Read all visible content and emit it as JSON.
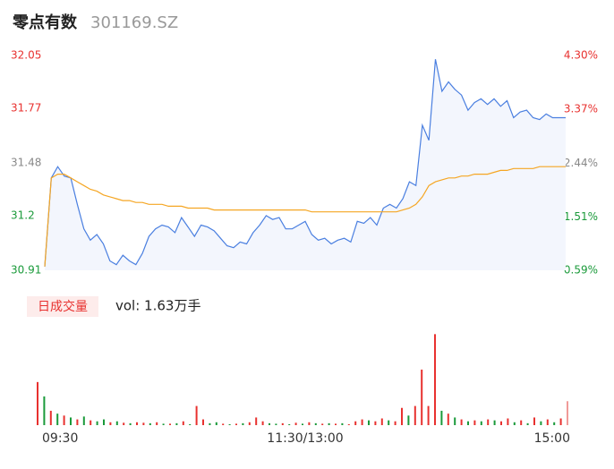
{
  "header": {
    "name": "零点有数",
    "code": "301169.SZ"
  },
  "chart_data": [
    {
      "type": "line",
      "area": true,
      "x": [
        0,
        3,
        6,
        9,
        12,
        15,
        18,
        21,
        24,
        27,
        30,
        33,
        36,
        39,
        42,
        45,
        48,
        51,
        54,
        57,
        60,
        63,
        66,
        69,
        72,
        75,
        78,
        81,
        84,
        87,
        90,
        93,
        96,
        99,
        102,
        105,
        108,
        111,
        114,
        117,
        120,
        123,
        126,
        129,
        132,
        135,
        138,
        141,
        144,
        147,
        150,
        153,
        156,
        159,
        162,
        165,
        168,
        171,
        174,
        177,
        180,
        183,
        186,
        189,
        192,
        195,
        198,
        201,
        204,
        207,
        210,
        213,
        216,
        219,
        222,
        225,
        228,
        231,
        234,
        237,
        240
      ],
      "xlim": [
        0,
        240
      ],
      "xticks": [
        {
          "value": 0,
          "label": "09:30"
        },
        {
          "value": 120,
          "label": "11:30/13:00"
        },
        {
          "value": 240,
          "label": "15:00"
        }
      ],
      "ylim": [
        30.91,
        32.05
      ],
      "yticks": [
        32.05,
        31.77,
        31.48,
        31.2,
        30.91
      ],
      "ytick_colors": [
        "#e8312f",
        "#e8312f",
        "#888888",
        "#1a9a3a",
        "#1a9a3a"
      ],
      "y2lim": [
        0.59,
        4.3
      ],
      "y2ticks": [
        {
          "value": 4.3,
          "label": "4.30%"
        },
        {
          "value": 3.37,
          "label": "3.37%"
        },
        {
          "value": 2.44,
          "label": "2.44%"
        },
        {
          "value": 1.51,
          "label": "1.51%"
        },
        {
          "value": 0.59,
          "label": "0.59%"
        }
      ],
      "y2tick_colors": [
        "#e8312f",
        "#e8312f",
        "#888888",
        "#1a9a3a",
        "#1a9a3a"
      ],
      "series": [
        {
          "color": "#4a7fe0",
          "values": [
            30.93,
            31.4,
            31.46,
            31.41,
            31.4,
            31.26,
            31.13,
            31.07,
            31.1,
            31.05,
            30.96,
            30.94,
            30.99,
            30.96,
            30.94,
            31.0,
            31.09,
            31.13,
            31.15,
            31.14,
            31.11,
            31.19,
            31.14,
            31.09,
            31.15,
            31.14,
            31.12,
            31.08,
            31.04,
            31.03,
            31.06,
            31.05,
            31.11,
            31.15,
            31.2,
            31.18,
            31.19,
            31.13,
            31.13,
            31.15,
            31.17,
            31.1,
            31.07,
            31.08,
            31.05,
            31.07,
            31.08,
            31.06,
            31.17,
            31.16,
            31.19,
            31.15,
            31.24,
            31.26,
            31.24,
            31.29,
            31.38,
            31.36,
            31.68,
            31.6,
            32.03,
            31.86,
            31.91,
            31.87,
            31.84,
            31.76,
            31.8,
            31.82,
            31.79,
            31.82,
            31.78,
            31.81,
            31.72,
            31.75,
            31.76,
            31.72,
            31.71,
            31.74,
            31.72,
            31.72,
            31.72
          ]
        },
        {
          "color": "#f5a623",
          "values": [
            30.93,
            31.4,
            31.42,
            31.42,
            31.4,
            31.38,
            31.36,
            31.34,
            31.33,
            31.31,
            31.3,
            31.29,
            31.28,
            31.28,
            31.27,
            31.27,
            31.26,
            31.26,
            31.26,
            31.25,
            31.25,
            31.25,
            31.24,
            31.24,
            31.24,
            31.24,
            31.23,
            31.23,
            31.23,
            31.23,
            31.23,
            31.23,
            31.23,
            31.23,
            31.23,
            31.23,
            31.23,
            31.23,
            31.23,
            31.23,
            31.23,
            31.22,
            31.22,
            31.22,
            31.22,
            31.22,
            31.22,
            31.22,
            31.22,
            31.22,
            31.22,
            31.22,
            31.22,
            31.22,
            31.22,
            31.23,
            31.24,
            31.26,
            31.3,
            31.36,
            31.38,
            31.39,
            31.4,
            31.4,
            31.41,
            31.41,
            31.42,
            31.42,
            31.42,
            31.43,
            31.44,
            31.44,
            31.45,
            31.45,
            31.45,
            31.45,
            31.46,
            31.46,
            31.46,
            31.46,
            31.46
          ]
        }
      ]
    },
    {
      "type": "bar",
      "title": "日成交量",
      "annotation": "vol: 1.63万手",
      "x": [
        0,
        3,
        6,
        9,
        12,
        15,
        18,
        21,
        24,
        27,
        30,
        33,
        36,
        39,
        42,
        45,
        48,
        51,
        54,
        57,
        60,
        63,
        66,
        69,
        72,
        75,
        78,
        81,
        84,
        87,
        90,
        93,
        96,
        99,
        102,
        105,
        108,
        111,
        114,
        117,
        120,
        123,
        126,
        129,
        132,
        135,
        138,
        141,
        144,
        147,
        150,
        153,
        156,
        159,
        162,
        165,
        168,
        171,
        174,
        177,
        180,
        183,
        186,
        189,
        192,
        195,
        198,
        201,
        204,
        207,
        210,
        213,
        216,
        219,
        222,
        225,
        228,
        231,
        234,
        237,
        240
      ],
      "xlim": [
        0,
        240
      ],
      "ylim": [
        0,
        1000
      ],
      "values": [
        450,
        300,
        150,
        120,
        100,
        80,
        60,
        90,
        50,
        40,
        60,
        30,
        40,
        25,
        20,
        30,
        25,
        20,
        30,
        15,
        15,
        20,
        40,
        10,
        200,
        60,
        20,
        30,
        15,
        10,
        15,
        20,
        30,
        80,
        40,
        20,
        15,
        20,
        10,
        25,
        15,
        30,
        20,
        15,
        20,
        15,
        20,
        10,
        40,
        60,
        50,
        40,
        70,
        50,
        40,
        180,
        100,
        200,
        580,
        200,
        950,
        150,
        120,
        80,
        60,
        40,
        50,
        40,
        60,
        50,
        40,
        70,
        30,
        50,
        20,
        80,
        40,
        60,
        30,
        70,
        250
      ],
      "colors": [
        "#e8312f",
        "#1a9a3a",
        "#e8312f",
        "#1a9a3a",
        "#e8312f",
        "#1a9a3a",
        "#e8312f",
        "#1a9a3a",
        "#e8312f",
        "#1a9a3a",
        "#1a9a3a",
        "#e8312f",
        "#1a9a3a",
        "#e8312f",
        "#1a9a3a",
        "#e8312f",
        "#e8312f",
        "#1a9a3a",
        "#e8312f",
        "#1a9a3a",
        "#e8312f",
        "#1a9a3a",
        "#e8312f",
        "#1a9a3a",
        "#e8312f",
        "#e8312f",
        "#1a9a3a",
        "#1a9a3a",
        "#e8312f",
        "#1a9a3a",
        "#e8312f",
        "#1a9a3a",
        "#e8312f",
        "#e8312f",
        "#e8312f",
        "#1a9a3a",
        "#1a9a3a",
        "#e8312f",
        "#1a9a3a",
        "#e8312f",
        "#1a9a3a",
        "#e8312f",
        "#1a9a3a",
        "#e8312f",
        "#1a9a3a",
        "#e8312f",
        "#1a9a3a",
        "#e8312f",
        "#e8312f",
        "#e8312f",
        "#1a9a3a",
        "#e8312f",
        "#e8312f",
        "#1a9a3a",
        "#e8312f",
        "#e8312f",
        "#1a9a3a",
        "#e8312f",
        "#e8312f",
        "#e8312f",
        "#e8312f",
        "#1a9a3a",
        "#e8312f",
        "#1a9a3a",
        "#e8312f",
        "#1a9a3a",
        "#e8312f",
        "#1a9a3a",
        "#e8312f",
        "#1a9a3a",
        "#e8312f",
        "#e8312f",
        "#1a9a3a",
        "#e8312f",
        "#1a9a3a",
        "#e8312f",
        "#1a9a3a",
        "#e8312f",
        "#1a9a3a",
        "#e8312f",
        "#f09a98"
      ]
    }
  ]
}
